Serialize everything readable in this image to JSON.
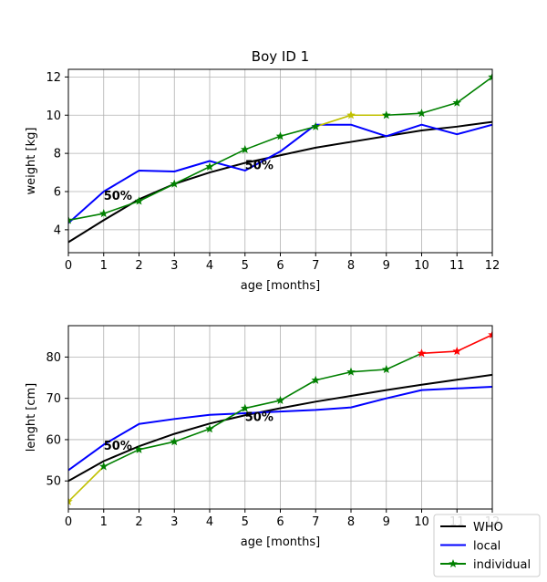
{
  "colors": {
    "who": "#000000",
    "local": "#0000ff",
    "individual": "#008000",
    "yellow": "#c0c000",
    "red": "#ff0000",
    "grid": "#b0b0b0"
  },
  "legend": {
    "placement": "lower-right",
    "items": [
      {
        "label": "WHO",
        "color": "#000000",
        "marker": "none"
      },
      {
        "label": "local",
        "color": "#0000ff",
        "marker": "none"
      },
      {
        "label": "individual",
        "color": "#008000",
        "marker": "star"
      }
    ]
  },
  "chart_data": [
    {
      "type": "line",
      "title": "Boy ID 1",
      "xlabel": "age [months]",
      "ylabel": "weight [kg]",
      "xlim": [
        0,
        12
      ],
      "ylim": [
        2.8,
        12.4
      ],
      "xticks": [
        "0",
        "1",
        "2",
        "3",
        "4",
        "5",
        "6",
        "7",
        "8",
        "9",
        "10",
        "11",
        "12"
      ],
      "yticks": [
        "4",
        "6",
        "8",
        "10",
        "12"
      ],
      "grid": true,
      "annotations": [
        {
          "text": "50%",
          "x": 1.0,
          "y": 5.8
        },
        {
          "text": "50%",
          "x": 5.0,
          "y": 7.4
        }
      ],
      "series": [
        {
          "name": "WHO",
          "color": "#000000",
          "x": [
            0,
            1,
            2,
            3,
            4,
            5,
            6,
            7,
            8,
            9,
            10,
            11,
            12
          ],
          "y": [
            3.35,
            4.5,
            5.6,
            6.4,
            7.0,
            7.5,
            7.9,
            8.3,
            8.6,
            8.9,
            9.2,
            9.4,
            9.65
          ]
        },
        {
          "name": "local",
          "color": "#0000ff",
          "x": [
            0,
            1,
            2,
            3,
            4,
            5,
            6,
            7,
            8,
            9,
            10,
            11,
            12
          ],
          "y": [
            4.35,
            6.0,
            7.1,
            7.05,
            7.6,
            7.1,
            8.1,
            9.5,
            9.5,
            8.9,
            9.5,
            9.0,
            9.5
          ]
        },
        {
          "name": "individual",
          "color": "#008000",
          "x": [
            0,
            1,
            2,
            3,
            4,
            5,
            6,
            7,
            8,
            9,
            10,
            11,
            12
          ],
          "y": [
            4.5,
            4.85,
            5.5,
            6.4,
            7.3,
            8.2,
            8.9,
            9.4,
            10.0,
            10.0,
            10.1,
            10.65,
            12.0
          ],
          "segment_colors": [
            "#008000",
            "#008000",
            "#008000",
            "#008000",
            "#008000",
            "#008000",
            "#008000",
            "#c0c000",
            "#c0c000",
            "#008000",
            "#008000",
            "#008000"
          ],
          "marker_colors": [
            "#008000",
            "#008000",
            "#008000",
            "#008000",
            "#008000",
            "#008000",
            "#008000",
            "#008000",
            "#c0c000",
            "#008000",
            "#008000",
            "#008000",
            "#008000"
          ]
        }
      ]
    },
    {
      "type": "line",
      "title": "",
      "xlabel": "age [months]",
      "ylabel": "lenght [cm]",
      "xlim": [
        0,
        12
      ],
      "ylim": [
        43.2,
        87.6
      ],
      "xticks": [
        "0",
        "1",
        "2",
        "3",
        "4",
        "5",
        "6",
        "7",
        "8",
        "9",
        "10",
        "11",
        "12"
      ],
      "yticks": [
        "50",
        "60",
        "70",
        "80"
      ],
      "grid": true,
      "annotations": [
        {
          "text": "50%",
          "x": 1.0,
          "y": 58.7
        },
        {
          "text": "50%",
          "x": 5.0,
          "y": 65.6
        }
      ],
      "series": [
        {
          "name": "WHO",
          "color": "#000000",
          "x": [
            0,
            1,
            2,
            3,
            4,
            5,
            6,
            7,
            8,
            9,
            10,
            11,
            12
          ],
          "y": [
            50.0,
            54.8,
            58.4,
            61.4,
            63.9,
            65.9,
            67.6,
            69.2,
            70.6,
            72.0,
            73.3,
            74.5,
            75.7
          ]
        },
        {
          "name": "local",
          "color": "#0000ff",
          "x": [
            0,
            1,
            2,
            3,
            4,
            5,
            6,
            7,
            8,
            9,
            10,
            11,
            12
          ],
          "y": [
            52.6,
            58.8,
            63.8,
            65.0,
            66.0,
            66.4,
            66.8,
            67.2,
            67.8,
            70.0,
            72.0,
            72.4,
            72.8
          ]
        },
        {
          "name": "individual",
          "color": "#008000",
          "x": [
            0,
            1,
            2,
            3,
            4,
            5,
            6,
            7,
            8,
            9,
            10,
            11,
            12
          ],
          "y": [
            45.0,
            53.5,
            57.6,
            59.5,
            62.6,
            67.6,
            69.5,
            74.4,
            76.4,
            77.0,
            80.9,
            81.4,
            85.4
          ],
          "segment_colors": [
            "#c0c000",
            "#008000",
            "#008000",
            "#008000",
            "#008000",
            "#008000",
            "#008000",
            "#008000",
            "#008000",
            "#008000",
            "#ff0000",
            "#ff0000"
          ],
          "marker_colors": [
            "#c0c000",
            "#008000",
            "#008000",
            "#008000",
            "#008000",
            "#008000",
            "#008000",
            "#008000",
            "#008000",
            "#008000",
            "#ff0000",
            "#ff0000",
            "#ff0000"
          ]
        }
      ]
    }
  ]
}
